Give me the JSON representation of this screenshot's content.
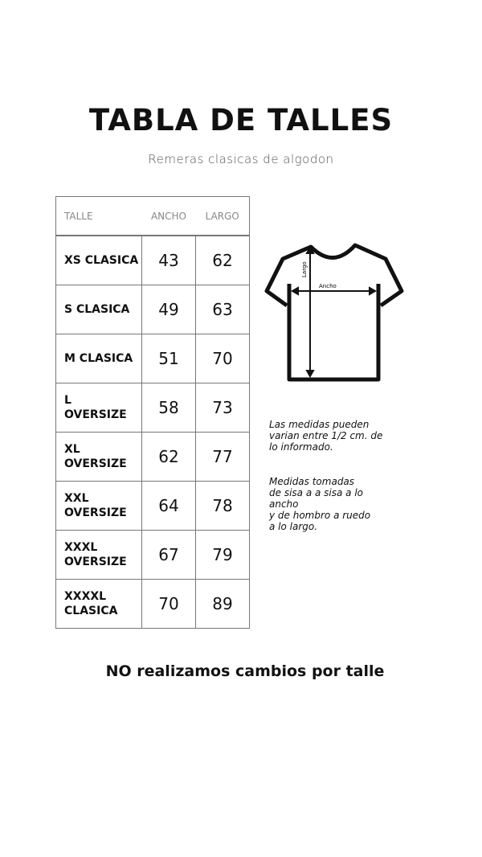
{
  "title": "TABLA DE TALLES",
  "subtitle": "Remeras clasicas de algodon",
  "table": {
    "headers": [
      "TALLE",
      "ANCHO",
      "LARGO"
    ],
    "rows": [
      {
        "size": [
          "XS CLASICA"
        ],
        "ancho": "43",
        "largo": "62"
      },
      {
        "size": [
          "S CLASICA"
        ],
        "ancho": "49",
        "largo": "63"
      },
      {
        "size": [
          "M CLASICA"
        ],
        "ancho": "51",
        "largo": "70"
      },
      {
        "size": [
          "L",
          "OVERSIZE"
        ],
        "ancho": "58",
        "largo": "73"
      },
      {
        "size": [
          "XL",
          "OVERSIZE"
        ],
        "ancho": "62",
        "largo": "77"
      },
      {
        "size": [
          "XXL",
          "OVERSIZE"
        ],
        "ancho": "64",
        "largo": "78"
      },
      {
        "size": [
          "XXXL",
          "OVERSIZE"
        ],
        "ancho": "67",
        "largo": "79"
      },
      {
        "size": [
          "XXXXL",
          "CLASICA"
        ],
        "ancho": "70",
        "largo": "89"
      }
    ]
  },
  "diagram": {
    "ancho_label": "Ancho",
    "largo_label": "Largo"
  },
  "notes": [
    [
      "Las medidas pueden",
      "varian entre 1/2 cm. de",
      "lo informado."
    ],
    [
      "Medidas tomadas",
      "de sisa a a sisa a lo",
      "ancho",
      "y de hombro a ruedo",
      "a lo largo."
    ]
  ],
  "footer": "NO realizamos cambios por talle"
}
